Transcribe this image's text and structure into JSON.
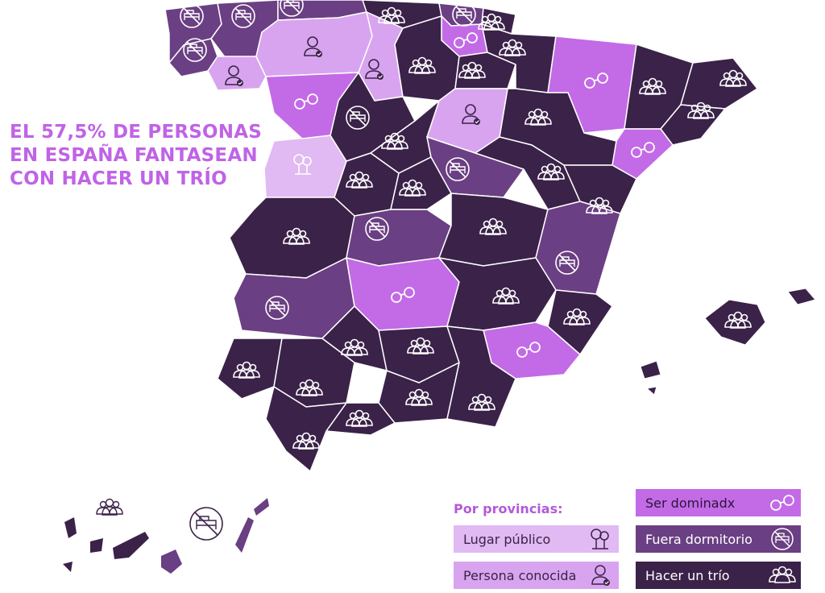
{
  "headline": {
    "line1": "EL 57,5% DE PERSONAS",
    "line2": "EN ESPAÑA FANTASEAN",
    "line3": "CON HACER UN TRÍO"
  },
  "legend": {
    "title": "Por provincias:",
    "items": [
      {
        "label": "Lugar público",
        "icon": "tree-icon",
        "color": "#e1b9f3"
      },
      {
        "label": "Persona conocida",
        "icon": "person-check-icon",
        "color": "#d8a4ef"
      },
      {
        "label": "Ser dominadx",
        "icon": "handcuffs-icon",
        "color": "#c36ae6"
      },
      {
        "label": "Fuera dormitorio",
        "icon": "no-bed-icon",
        "color": "#6b3f83"
      },
      {
        "label": "Hacer un trío",
        "icon": "group-icon",
        "color": "#3b2249"
      }
    ]
  },
  "colors": {
    "lugar_publico": "#e1b9f3",
    "persona_conocida": "#d8a4ef",
    "ser_dominadx": "#c36ae6",
    "fuera_dormitorio": "#6b3f83",
    "hacer_un_trio": "#3b2249",
    "border": "#ffffff",
    "headline": "#c063e6"
  }
}
